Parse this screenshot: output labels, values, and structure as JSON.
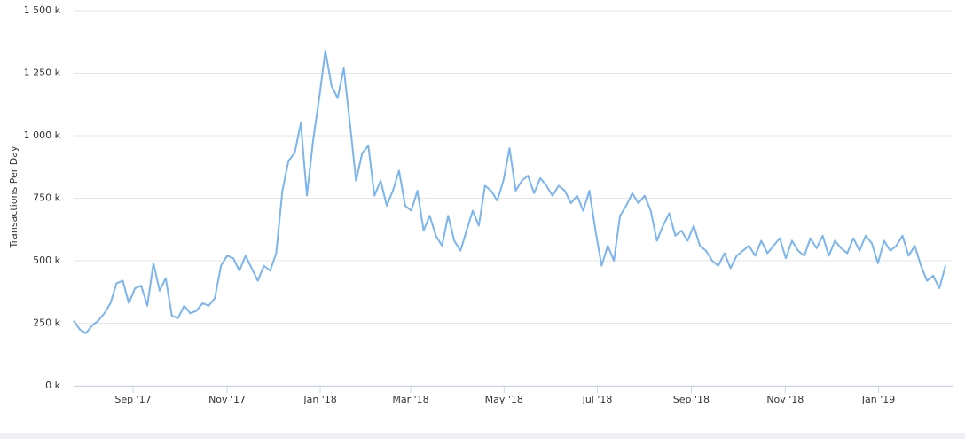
{
  "chart_data": {
    "type": "line",
    "y_label": "Transactions Per Day",
    "color": "#7cb5ec",
    "grid": true,
    "xlim": [
      0,
      142
    ],
    "xticks": [
      {
        "value": 9.68,
        "label": "Sep '17"
      },
      {
        "value": 25.0,
        "label": "Nov '17"
      },
      {
        "value": 40.17,
        "label": "Jan '18"
      },
      {
        "value": 54.9,
        "label": "Mar '18"
      },
      {
        "value": 70.1,
        "label": "May '18"
      },
      {
        "value": 85.3,
        "label": "Jul '18"
      },
      {
        "value": 100.6,
        "label": "Sep '18"
      },
      {
        "value": 115.9,
        "label": "Nov '18"
      },
      {
        "value": 131.1,
        "label": "Jan '19"
      }
    ],
    "ylim": [
      0,
      1500
    ],
    "yticks": [
      {
        "value": 0,
        "label": "0 k"
      },
      {
        "value": 250,
        "label": "250 k"
      },
      {
        "value": 500,
        "label": "500 k"
      },
      {
        "value": 750,
        "label": "750 k"
      },
      {
        "value": 1000,
        "label": "1 000 k"
      },
      {
        "value": 1250,
        "label": "1 250 k"
      },
      {
        "value": 1500,
        "label": "1 500 k"
      }
    ],
    "values": [
      260,
      225,
      210,
      240,
      260,
      290,
      330,
      410,
      420,
      330,
      390,
      400,
      320,
      490,
      380,
      430,
      280,
      270,
      320,
      290,
      300,
      330,
      320,
      350,
      480,
      520,
      510,
      460,
      520,
      470,
      420,
      480,
      460,
      530,
      780,
      900,
      930,
      1050,
      760,
      980,
      1150,
      1340,
      1200,
      1150,
      1270,
      1050,
      820,
      930,
      960,
      760,
      820,
      720,
      780,
      860,
      720,
      700,
      780,
      620,
      680,
      600,
      560,
      680,
      580,
      540,
      620,
      700,
      640,
      800,
      780,
      740,
      820,
      950,
      780,
      820,
      840,
      770,
      830,
      800,
      760,
      800,
      780,
      730,
      760,
      700,
      780,
      620,
      480,
      560,
      500,
      680,
      720,
      770,
      730,
      760,
      700,
      580,
      640,
      690,
      600,
      620,
      580,
      640,
      560,
      540,
      500,
      480,
      530,
      470,
      520,
      540,
      560,
      520,
      580,
      530,
      560,
      590,
      510,
      580,
      540,
      520,
      590,
      550,
      600,
      520,
      580,
      550,
      530,
      590,
      540,
      600,
      570,
      490,
      580,
      540,
      560,
      600,
      520,
      560,
      480,
      420,
      440,
      390,
      480
    ]
  }
}
